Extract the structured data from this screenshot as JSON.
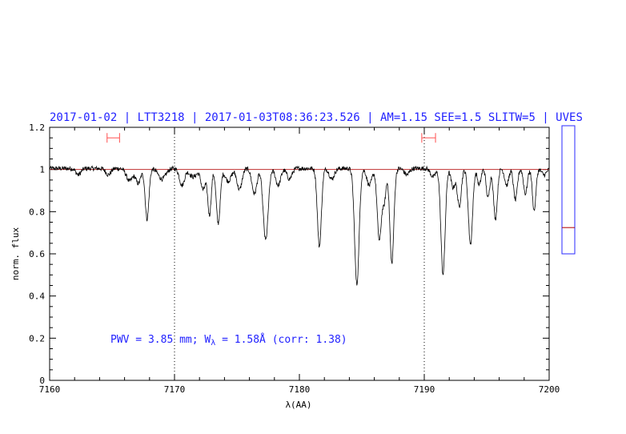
{
  "chart_data": {
    "type": "line",
    "title": "2017-01-02 | LTT3218 | 2017-01-03T08:36:23.526 | AM=1.15  SEE=1.5  SLITW=5 | UVES",
    "xlabel": "λ(AA)",
    "ylabel": "norm. flux",
    "xlim": [
      7160,
      7200
    ],
    "ylim": [
      0,
      1.2
    ],
    "x_ticks": [
      {
        "value": 7160,
        "label": "7160"
      },
      {
        "value": 7170,
        "label": "7170"
      },
      {
        "value": 7180,
        "label": "7180"
      },
      {
        "value": 7190,
        "label": "7190"
      },
      {
        "value": 7200,
        "label": "7200"
      }
    ],
    "y_ticks": [
      {
        "value": 0,
        "label": "0"
      },
      {
        "value": 0.2,
        "label": "0.2"
      },
      {
        "value": 0.4,
        "label": "0.4"
      },
      {
        "value": 0.6,
        "label": "0.6"
      },
      {
        "value": 0.8,
        "label": "0.8"
      },
      {
        "value": 1.0,
        "label": "1"
      },
      {
        "value": 1.2,
        "label": "1.2"
      }
    ],
    "annotation": {
      "prefix": "PWV = 3.85 mm; W",
      "subscript": "λ",
      "suffix": " = 1.58Å (corr: 1.38)"
    },
    "continuum_level": 1.0,
    "vertical_lines": [
      7170,
      7190
    ],
    "continuum_windows": [
      {
        "x1": 7164.6,
        "x2": 7165.6,
        "y": 1.15
      },
      {
        "x1": 7189.8,
        "x2": 7190.9,
        "y": 1.15
      }
    ],
    "baseline": 1.005,
    "absorption_lines": [
      {
        "center": 7162.3,
        "depth": 0.03,
        "width": 0.2
      },
      {
        "center": 7164.7,
        "depth": 0.03,
        "width": 0.2
      },
      {
        "center": 7166.4,
        "depth": 0.06,
        "width": 0.25
      },
      {
        "center": 7167.1,
        "depth": 0.07,
        "width": 0.2
      },
      {
        "center": 7167.8,
        "depth": 0.24,
        "width": 0.15
      },
      {
        "center": 7169.0,
        "depth": 0.05,
        "width": 0.3
      },
      {
        "center": 7170.6,
        "depth": 0.08,
        "width": 0.2
      },
      {
        "center": 7171.5,
        "depth": 0.04,
        "width": 0.3
      },
      {
        "center": 7172.3,
        "depth": 0.1,
        "width": 0.18
      },
      {
        "center": 7172.8,
        "depth": 0.22,
        "width": 0.14
      },
      {
        "center": 7173.5,
        "depth": 0.26,
        "width": 0.16
      },
      {
        "center": 7174.3,
        "depth": 0.06,
        "width": 0.25
      },
      {
        "center": 7175.2,
        "depth": 0.1,
        "width": 0.2
      },
      {
        "center": 7176.4,
        "depth": 0.12,
        "width": 0.2
      },
      {
        "center": 7177.3,
        "depth": 0.34,
        "width": 0.2
      },
      {
        "center": 7178.3,
        "depth": 0.08,
        "width": 0.2
      },
      {
        "center": 7179.2,
        "depth": 0.05,
        "width": 0.2
      },
      {
        "center": 7181.6,
        "depth": 0.37,
        "width": 0.16
      },
      {
        "center": 7182.6,
        "depth": 0.05,
        "width": 0.2
      },
      {
        "center": 7184.6,
        "depth": 0.55,
        "width": 0.18
      },
      {
        "center": 7185.6,
        "depth": 0.08,
        "width": 0.2
      },
      {
        "center": 7186.4,
        "depth": 0.34,
        "width": 0.17
      },
      {
        "center": 7186.8,
        "depth": 0.15,
        "width": 0.14
      },
      {
        "center": 7187.4,
        "depth": 0.45,
        "width": 0.16
      },
      {
        "center": 7188.6,
        "depth": 0.03,
        "width": 0.2
      },
      {
        "center": 7190.7,
        "depth": 0.04,
        "width": 0.2
      },
      {
        "center": 7191.5,
        "depth": 0.5,
        "width": 0.17
      },
      {
        "center": 7192.3,
        "depth": 0.09,
        "width": 0.16
      },
      {
        "center": 7192.8,
        "depth": 0.18,
        "width": 0.16
      },
      {
        "center": 7193.7,
        "depth": 0.36,
        "width": 0.17
      },
      {
        "center": 7194.4,
        "depth": 0.08,
        "width": 0.14
      },
      {
        "center": 7195.1,
        "depth": 0.14,
        "width": 0.14
      },
      {
        "center": 7195.7,
        "depth": 0.24,
        "width": 0.15
      },
      {
        "center": 7196.6,
        "depth": 0.08,
        "width": 0.16
      },
      {
        "center": 7197.3,
        "depth": 0.15,
        "width": 0.15
      },
      {
        "center": 7198.1,
        "depth": 0.12,
        "width": 0.15
      },
      {
        "center": 7198.8,
        "depth": 0.2,
        "width": 0.14
      },
      {
        "center": 7199.6,
        "depth": 0.03,
        "width": 0.2
      }
    ],
    "side_panel": {
      "marker_fraction": 0.205
    },
    "colors": {
      "title": "#1f1fff",
      "annotation": "#1f1fff",
      "spectrum": "#000000",
      "continuum": "#c03030",
      "window_markers": "#ff5050",
      "side_panel_border": "#2a2aff",
      "side_panel_marker": "#b00000"
    }
  }
}
